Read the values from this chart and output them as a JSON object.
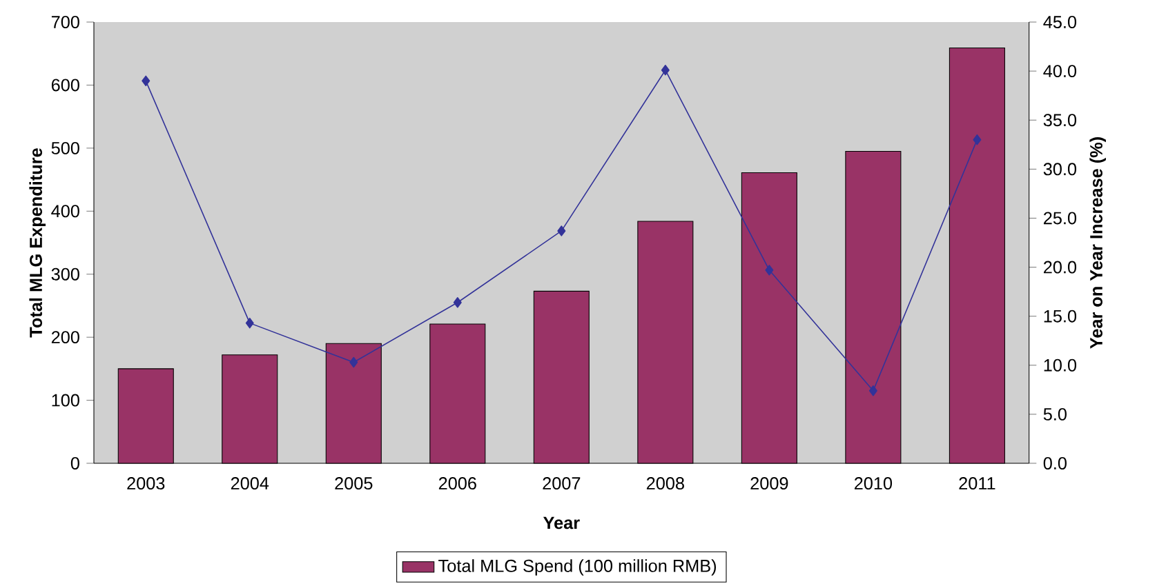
{
  "chart_data": {
    "type": "bar",
    "xlabel": "Year",
    "ylabel": "Total MLG Expenditure",
    "y2label": "Year on Year Increase (%)",
    "categories": [
      "2003",
      "2004",
      "2005",
      "2006",
      "2007",
      "2008",
      "2009",
      "2010",
      "2011"
    ],
    "series": [
      {
        "name": "Total MLG Spend (100 million RMB)",
        "color": "#993366",
        "values": [
          150,
          172,
          190,
          221,
          273,
          384,
          461,
          495,
          659
        ]
      },
      {
        "type": "line",
        "axis": "y2",
        "color": "#333399",
        "marker": "diamond",
        "values": [
          39.0,
          14.3,
          10.3,
          16.4,
          23.7,
          40.1,
          19.7,
          7.4,
          33.0
        ]
      }
    ],
    "ylim": [
      0,
      700
    ],
    "yticks": [
      0,
      100,
      200,
      300,
      400,
      500,
      600,
      700
    ],
    "y2lim": [
      0,
      45
    ],
    "y2ticks": [
      {
        "value": 0,
        "label": "0.0"
      },
      {
        "value": 5,
        "label": "5.0"
      },
      {
        "value": 10,
        "label": "10.0"
      },
      {
        "value": 15,
        "label": "15.0"
      },
      {
        "value": 20,
        "label": "20.0"
      },
      {
        "value": 25,
        "label": "25.0"
      },
      {
        "value": 30,
        "label": "30.0"
      },
      {
        "value": 35,
        "label": "35.0"
      },
      {
        "value": 40,
        "label": "40.0"
      },
      {
        "value": 45,
        "label": "45.0"
      }
    ],
    "legend": "bottom"
  }
}
